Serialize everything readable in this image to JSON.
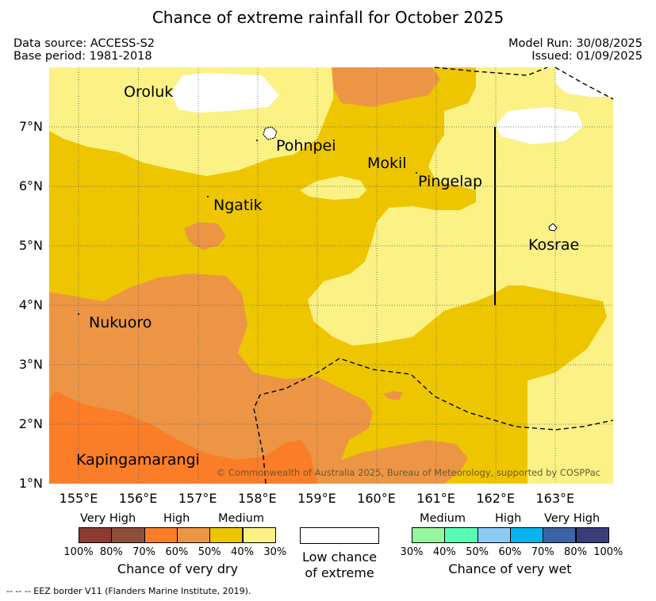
{
  "title": "Chance of extreme rainfall for October 2025",
  "meta": {
    "data_source": "Data source: ACCESS-S2",
    "base_period": "Base period: 1981-2018",
    "model_run": "Model Run: 30/08/2025",
    "issued": "Issued: 01/09/2025"
  },
  "map": {
    "lat_labels": [
      "1°N",
      "2°N",
      "3°N",
      "4°N",
      "5°N",
      "6°N",
      "7°N"
    ],
    "lon_labels": [
      "155°E",
      "156°E",
      "157°E",
      "158°E",
      "159°E",
      "160°E",
      "161°E",
      "162°E",
      "163°E"
    ],
    "places": {
      "oroluk": "Oroluk",
      "pohnpei": "Pohnpei",
      "mokil": "Mokil",
      "pingelap": "Pingelap",
      "ngatik": "Ngatik",
      "kosrae": "Kosrae",
      "nukuoro": "Nukuoro",
      "kapingamarangi": "Kapingamarangi"
    },
    "copyright": "© Commonwealth of Australia 2025, Bureau of Meteorology, supported by COSPPac"
  },
  "legend": {
    "dry": {
      "categories": [
        "Very High",
        "High",
        "Medium"
      ],
      "pcts": [
        "100%",
        "80%",
        "70%",
        "60%",
        "50%",
        "40%",
        "30%"
      ],
      "colors": [
        "#8c3b30",
        "#8d4e3c",
        "#fb7d27",
        "#ec9645",
        "#edc600",
        "#fbf184"
      ],
      "caption": "Chance of very dry"
    },
    "low": {
      "line1": "Low chance",
      "line2": "of extreme"
    },
    "wet": {
      "categories": [
        "Medium",
        "High",
        "Very High"
      ],
      "pcts": [
        "30%",
        "40%",
        "50%",
        "60%",
        "70%",
        "80%",
        "100%"
      ],
      "colors": [
        "#97f79c",
        "#59fcb4",
        "#89cbf5",
        "#05b3ef",
        "#3c63a3",
        "#3b3d7b"
      ],
      "caption": "Chance of very wet"
    }
  },
  "eez_note": "--  --  -- EEZ border V11 (Flanders Marine Institute, 2019)."
}
